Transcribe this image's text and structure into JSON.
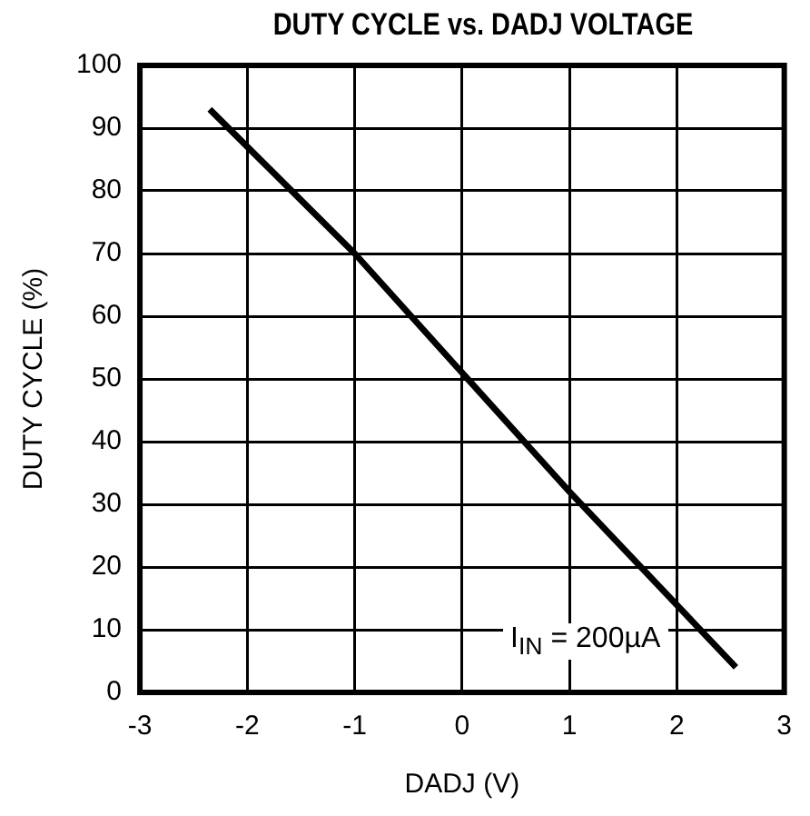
{
  "chart_data": {
    "type": "line",
    "title": "DUTY CYCLE vs. DADJ VOLTAGE",
    "xlabel": "DADJ (V)",
    "ylabel": "DUTY CYCLE (%)",
    "x": [
      -2.35,
      -1,
      0,
      1,
      2.55
    ],
    "series": [
      {
        "color": "#000000",
        "values": [
          93,
          70,
          51,
          32,
          4
        ]
      }
    ],
    "xlim": [
      -3,
      3
    ],
    "xticks": [
      -3,
      -2,
      -1,
      0,
      1,
      2,
      3
    ],
    "ylim": [
      0,
      100
    ],
    "yticks": [
      0,
      10,
      20,
      30,
      40,
      50,
      60,
      70,
      80,
      90,
      100
    ],
    "grid": true,
    "legend": false,
    "marker": "none",
    "line_style": "solid",
    "annotations": [
      "I$_{IN}$ = 200µA"
    ]
  }
}
